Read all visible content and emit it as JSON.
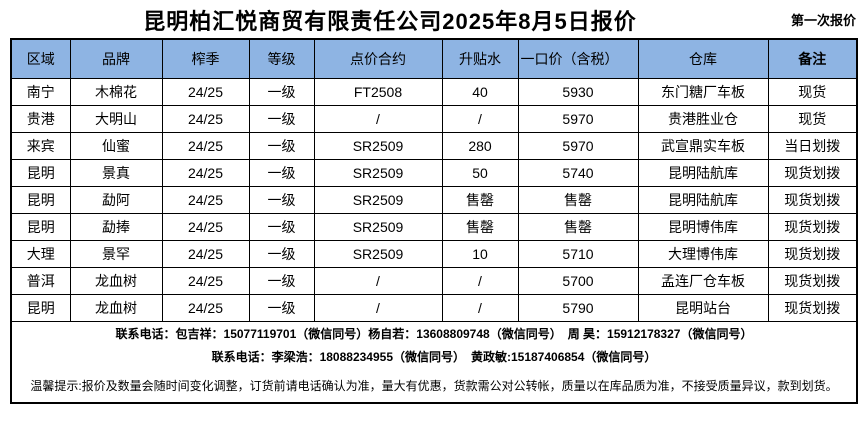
{
  "title": "昆明柏汇悦商贸有限责任公司2025年8月5日报价",
  "subtitle": "第一次报价",
  "table": {
    "columns": [
      {
        "label": "区域",
        "key": "region"
      },
      {
        "label": "品牌",
        "key": "brand"
      },
      {
        "label": "榨季",
        "key": "season"
      },
      {
        "label": "等级",
        "key": "grade"
      },
      {
        "label": "点价合约",
        "key": "contract"
      },
      {
        "label": "升贴水",
        "key": "premium"
      },
      {
        "label": "一口价（含税）",
        "key": "price"
      },
      {
        "label": "仓库",
        "key": "warehouse"
      },
      {
        "label": "备注",
        "key": "remark"
      }
    ],
    "rows": [
      [
        "南宁",
        "木棉花",
        "24/25",
        "一级",
        "FT2508",
        "40",
        "5930",
        "东门糖厂车板",
        "现货"
      ],
      [
        "贵港",
        "大明山",
        "24/25",
        "一级",
        "/",
        "/",
        "5970",
        "贵港胜业仓",
        "现货"
      ],
      [
        "来宾",
        "仙蜜",
        "24/25",
        "一级",
        "SR2509",
        "280",
        "5970",
        "武宣鼎实车板",
        "当日划拨"
      ],
      [
        "昆明",
        "景真",
        "24/25",
        "一级",
        "SR2509",
        "50",
        "5740",
        "昆明陆航库",
        "现货划拨"
      ],
      [
        "昆明",
        "勐阿",
        "24/25",
        "一级",
        "SR2509",
        "售罄",
        "售罄",
        "昆明陆航库",
        "现货划拨"
      ],
      [
        "昆明",
        "勐捧",
        "24/25",
        "一级",
        "SR2509",
        "售罄",
        "售罄",
        "昆明博伟库",
        "现货划拨"
      ],
      [
        "大理",
        "景罕",
        "24/25",
        "一级",
        "SR2509",
        "10",
        "5710",
        "大理博伟库",
        "现货划拨"
      ],
      [
        "普洱",
        "龙血树",
        "24/25",
        "一级",
        "/",
        "/",
        "5700",
        "孟连厂仓车板",
        "现货划拨"
      ],
      [
        "昆明",
        "龙血树",
        "24/25",
        "一级",
        "/",
        "/",
        "5790",
        "昆明站台",
        "现货划拨"
      ]
    ]
  },
  "footer": {
    "contact_line1": "联系电话：包吉祥：15077119701（微信同号）杨自若：13608809748（微信同号）　周 昊：15912178327（微信同号）",
    "contact_line2": "联系电话：李梁浩：18088234955（微信同号）　黄政敏:15187406854（微信同号）",
    "tips": "温馨提示:报价及数量会随时间变化调整，订货前请电话确认为准，量大有优惠，货款需公对公转帐，质量以在库品质为准，不接受质量异议，款到划货。"
  },
  "colors": {
    "header_bg": "#8EB4E3",
    "border": "#000000",
    "text": "#000000"
  }
}
